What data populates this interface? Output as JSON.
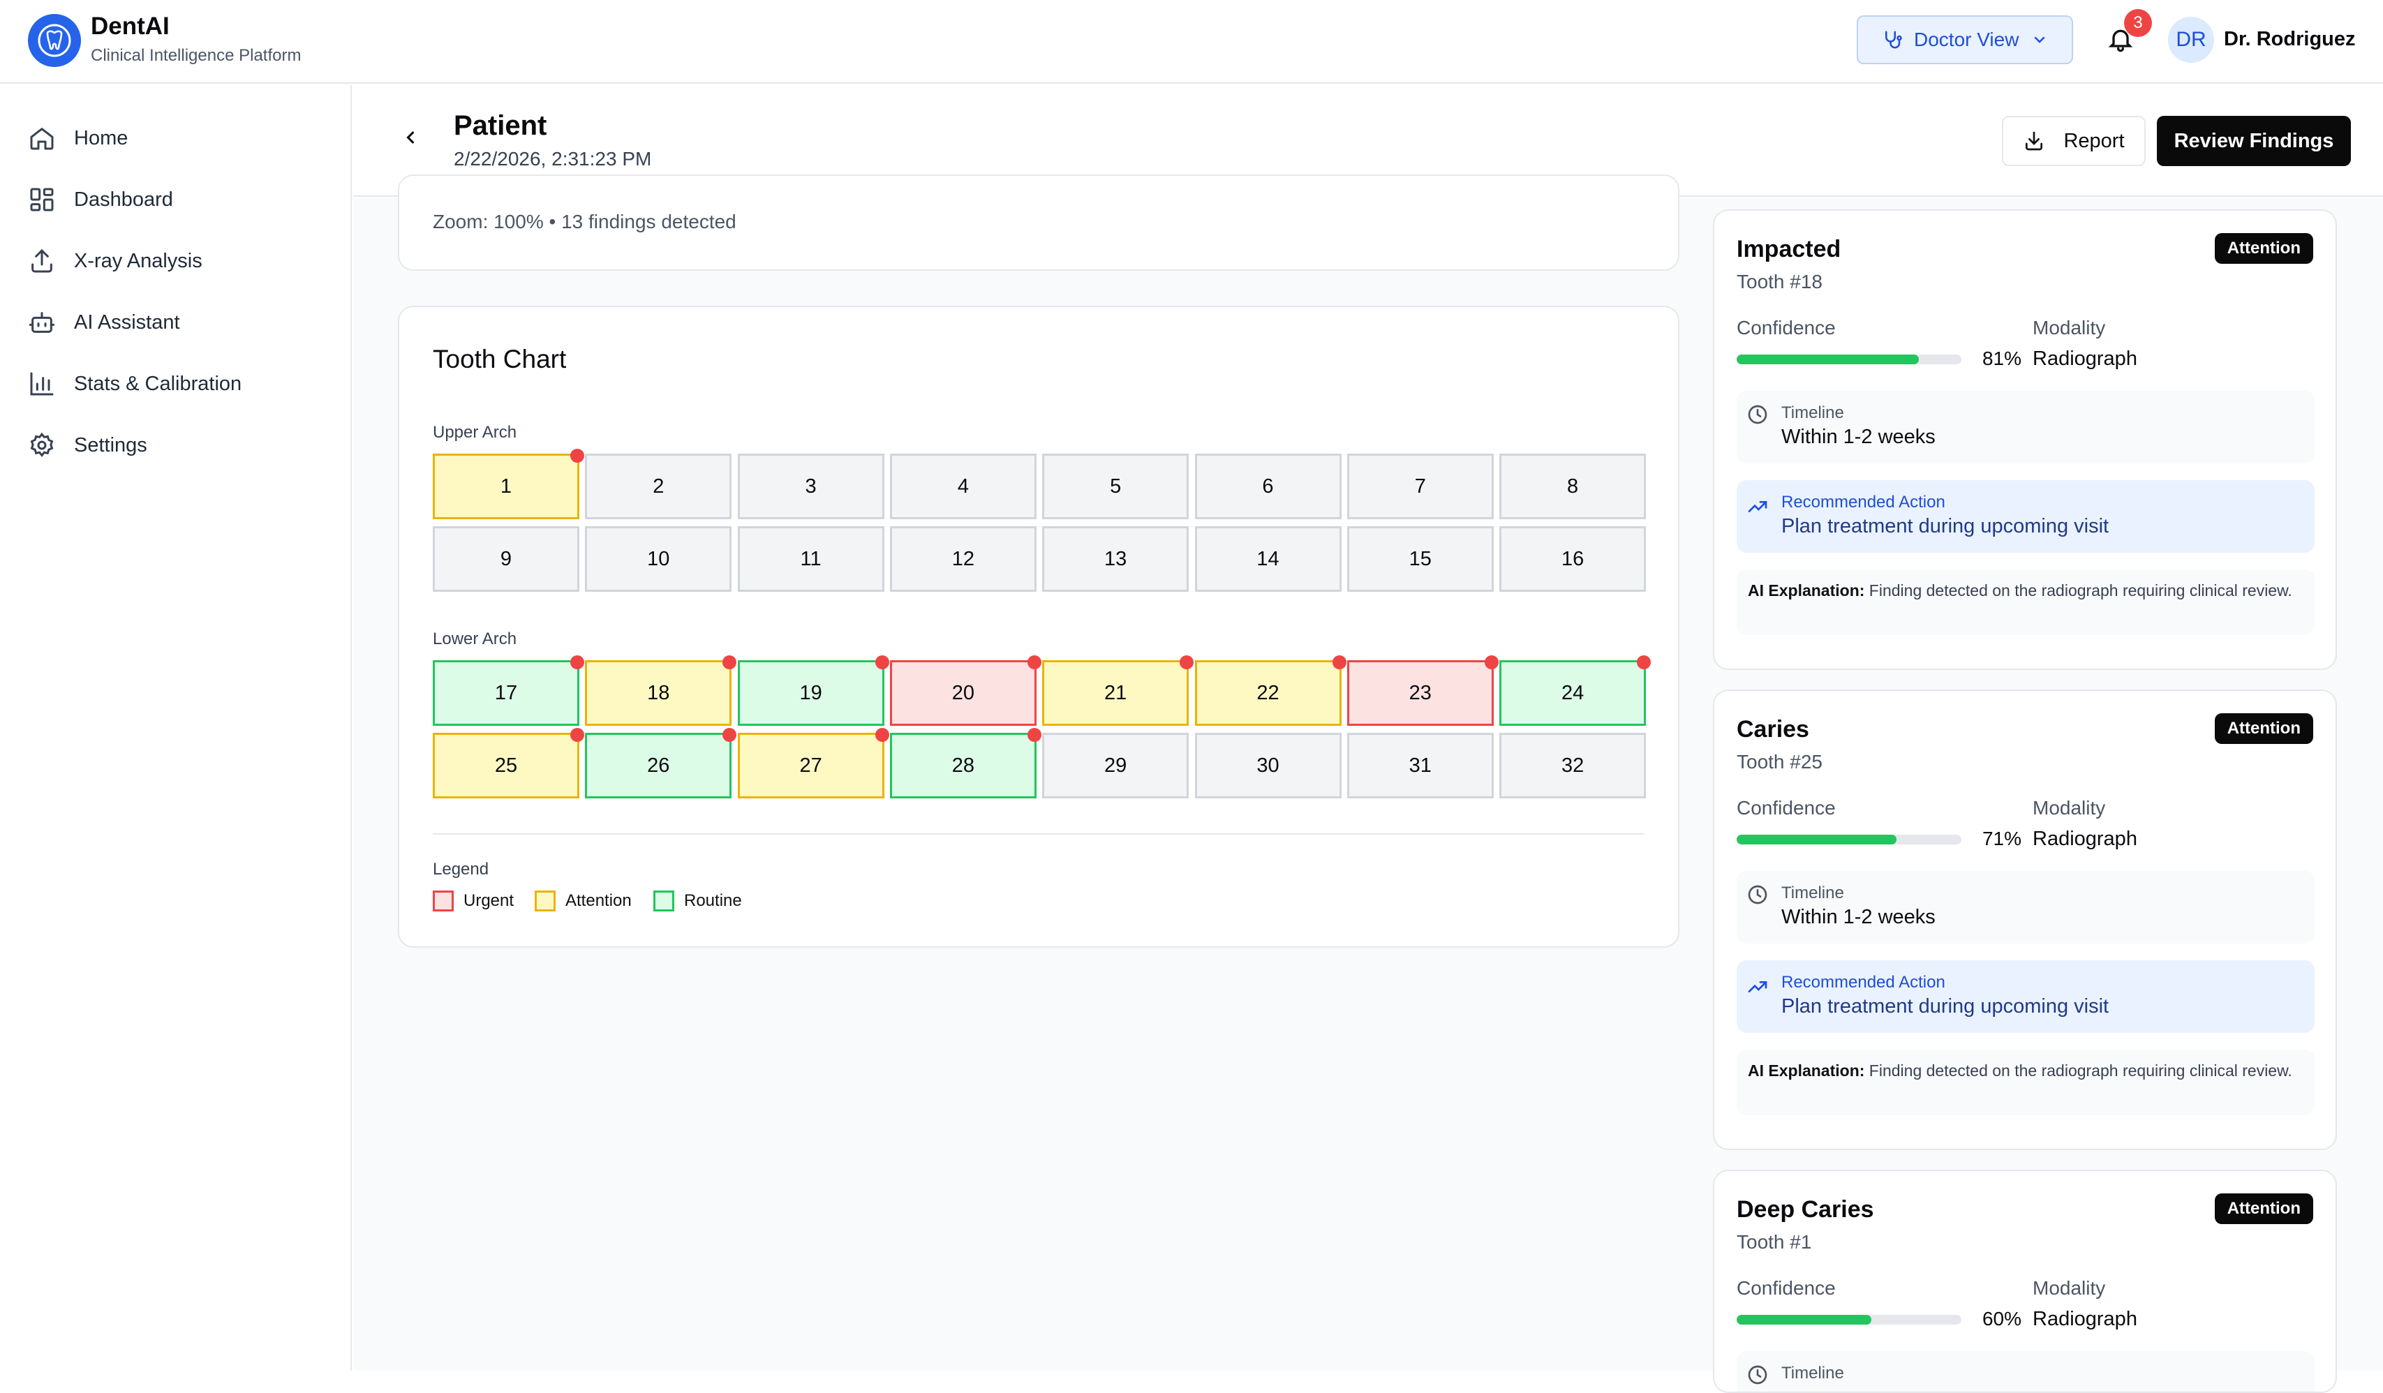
{
  "app": {
    "name": "DentAI",
    "subtitle": "Clinical Intelligence Platform",
    "accent": "#2563eb"
  },
  "topbar": {
    "view_label": "Doctor View",
    "notifications": "3",
    "avatar_initials": "DR",
    "user_name": "Dr. Rodriguez"
  },
  "sidebar": {
    "items": [
      {
        "label": "Home",
        "icon": "home-icon"
      },
      {
        "label": "Dashboard",
        "icon": "grid-icon"
      },
      {
        "label": "X-ray Analysis",
        "icon": "upload-icon"
      },
      {
        "label": "AI Assistant",
        "icon": "bot-icon"
      },
      {
        "label": "Stats & Calibration",
        "icon": "bar-chart-icon"
      },
      {
        "label": "Settings",
        "icon": "gear-icon"
      }
    ]
  },
  "header": {
    "title": "Patient",
    "datetime": "2/22/2026, 2:31:23 PM",
    "report_label": "Report",
    "review_label": "Review Findings"
  },
  "viewer": {
    "zoom_text": "Zoom: 100% • 13 findings detected"
  },
  "tooth_chart": {
    "title": "Tooth Chart",
    "upper_label": "Upper Arch",
    "lower_label": "Lower Arch",
    "upper_rows": [
      [
        {
          "n": "1",
          "sev": "attention",
          "flag": true
        },
        {
          "n": "2",
          "sev": "none",
          "flag": false
        },
        {
          "n": "3",
          "sev": "none",
          "flag": false
        },
        {
          "n": "4",
          "sev": "none",
          "flag": false
        },
        {
          "n": "5",
          "sev": "none",
          "flag": false
        },
        {
          "n": "6",
          "sev": "none",
          "flag": false
        },
        {
          "n": "7",
          "sev": "none",
          "flag": false
        },
        {
          "n": "8",
          "sev": "none",
          "flag": false
        }
      ],
      [
        {
          "n": "9",
          "sev": "none",
          "flag": false
        },
        {
          "n": "10",
          "sev": "none",
          "flag": false
        },
        {
          "n": "11",
          "sev": "none",
          "flag": false
        },
        {
          "n": "12",
          "sev": "none",
          "flag": false
        },
        {
          "n": "13",
          "sev": "none",
          "flag": false
        },
        {
          "n": "14",
          "sev": "none",
          "flag": false
        },
        {
          "n": "15",
          "sev": "none",
          "flag": false
        },
        {
          "n": "16",
          "sev": "none",
          "flag": false
        }
      ]
    ],
    "lower_rows": [
      [
        {
          "n": "17",
          "sev": "routine",
          "flag": true
        },
        {
          "n": "18",
          "sev": "attention",
          "flag": true
        },
        {
          "n": "19",
          "sev": "routine",
          "flag": true
        },
        {
          "n": "20",
          "sev": "urgent",
          "flag": true
        },
        {
          "n": "21",
          "sev": "attention",
          "flag": true
        },
        {
          "n": "22",
          "sev": "attention",
          "flag": true
        },
        {
          "n": "23",
          "sev": "urgent",
          "flag": true
        },
        {
          "n": "24",
          "sev": "routine",
          "flag": true
        }
      ],
      [
        {
          "n": "25",
          "sev": "attention",
          "flag": true
        },
        {
          "n": "26",
          "sev": "routine",
          "flag": true
        },
        {
          "n": "27",
          "sev": "attention",
          "flag": true
        },
        {
          "n": "28",
          "sev": "routine",
          "flag": true
        },
        {
          "n": "29",
          "sev": "none",
          "flag": false
        },
        {
          "n": "30",
          "sev": "none",
          "flag": false
        },
        {
          "n": "31",
          "sev": "none",
          "flag": false
        },
        {
          "n": "32",
          "sev": "none",
          "flag": false
        }
      ]
    ],
    "legend_title": "Legend",
    "legend": [
      {
        "label": "Urgent",
        "color": "#ef4444"
      },
      {
        "label": "Attention",
        "color": "#eab308"
      },
      {
        "label": "Routine",
        "color": "#22c55e"
      }
    ]
  },
  "findings": [
    {
      "title": "Impacted",
      "badge": "Attention",
      "tooth": "Tooth #18",
      "confidence_label": "Confidence",
      "confidence": 0.81,
      "confidence_text": "81%",
      "modality_label": "Modality",
      "modality": "Radiograph",
      "timeline_label": "Timeline",
      "timeline": "Within 1-2 weeks",
      "action_label": "Recommended Action",
      "action": "Plan treatment during upcoming visit",
      "explanation_label": "AI Explanation:",
      "explanation": "Finding detected on the radiograph requiring clinical review."
    },
    {
      "title": "Caries",
      "badge": "Attention",
      "tooth": "Tooth #25",
      "confidence_label": "Confidence",
      "confidence": 0.71,
      "confidence_text": "71%",
      "modality_label": "Modality",
      "modality": "Radiograph",
      "timeline_label": "Timeline",
      "timeline": "Within 1-2 weeks",
      "action_label": "Recommended Action",
      "action": "Plan treatment during upcoming visit",
      "explanation_label": "AI Explanation:",
      "explanation": "Finding detected on the radiograph requiring clinical review."
    },
    {
      "title": "Deep Caries",
      "badge": "Attention",
      "tooth": "Tooth #1",
      "confidence_label": "Confidence",
      "confidence": 0.6,
      "confidence_text": "60%",
      "modality_label": "Modality",
      "modality": "Radiograph",
      "timeline_label": "Timeline"
    }
  ]
}
